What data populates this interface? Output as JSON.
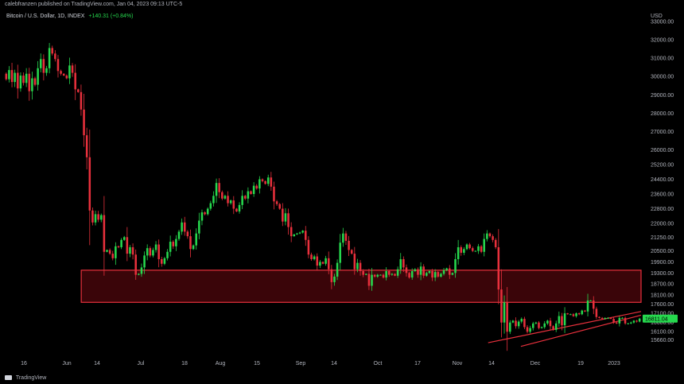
{
  "header": {
    "publisher_line": "calebfranzen published on TradingView.com, Jan 04, 2023 09:13 UTC-5",
    "symbol": "Bitcoin / U.S. Dollar, 1D, INDEX",
    "change": "+140.31 (+0.84%)"
  },
  "footer": {
    "brand": "TradingView"
  },
  "colors": {
    "background": "#000000",
    "up": "#26d94e",
    "down": "#e8303c",
    "zone_fill": "#3a0509",
    "zone_stroke": "#e8303c",
    "price_tag": "#26d94e"
  },
  "chart_data": {
    "type": "candlestick",
    "currency": "USD",
    "last_price": 16811.04,
    "last_price_label": "16811.04",
    "ylim": [
      15200,
      33300
    ],
    "y_ticks": [
      15660,
      16100,
      16600,
      17100,
      17600,
      18100,
      18700,
      19300,
      19900,
      20500,
      21250,
      22000,
      22800,
      23600,
      24400,
      25200,
      26000,
      27000,
      28000,
      29000,
      30000,
      31000,
      32000,
      33000
    ],
    "y_tick_labels": [
      "15660.00",
      "16100.00",
      "16600.00",
      "17100.00",
      "17600.00",
      "18100.00",
      "18700.00",
      "19300.00",
      "19900.00",
      "20500.00",
      "21250.00",
      "22000.00",
      "22800.00",
      "23600.00",
      "24400.00",
      "25200.00",
      "26000.00",
      "27000.00",
      "28000.00",
      "29000.00",
      "30000.00",
      "31000.00",
      "32000.00",
      "33000.00"
    ],
    "x_ticks": [
      "16",
      "Jun",
      "14",
      "Jul",
      "18",
      "Aug",
      "15",
      "Sep",
      "14",
      "Oct",
      "17",
      "Nov",
      "14",
      "Dec",
      "19",
      "2023"
    ],
    "date_range": [
      "2022-05-16",
      "2023-01-04"
    ],
    "resistance_zone": {
      "from": 17700,
      "to": 19450,
      "start": "2022-06-13",
      "end": "2023-01-04"
    },
    "trendlines": [
      {
        "from": [
          "2022-11-09",
          15500
        ],
        "to": [
          "2023-01-04",
          17200
        ]
      },
      {
        "from": [
          "2022-11-21",
          15300
        ],
        "to": [
          "2023-01-04",
          17000
        ]
      }
    ],
    "closes": [
      29850,
      30350,
      29700,
      30200,
      29350,
      30050,
      29650,
      30150,
      29200,
      29900,
      29550,
      30450,
      30950,
      30200,
      30450,
      31550,
      31250,
      30950,
      30300,
      30150,
      30050,
      29900,
      30600,
      30200,
      29300,
      29150,
      28200,
      26800,
      25600,
      22700,
      22050,
      22500,
      22200,
      22450,
      20450,
      20550,
      20350,
      20100,
      20750,
      20700,
      21100,
      21250,
      20350,
      20700,
      20300,
      19200,
      19250,
      19600,
      20250,
      20650,
      20250,
      20550,
      20850,
      20050,
      19800,
      20100,
      20450,
      21000,
      20750,
      21150,
      21550,
      22050,
      21550,
      21300,
      20600,
      20800,
      21450,
      22150,
      22600,
      22500,
      22800,
      23100,
      23500,
      24200,
      23700,
      23350,
      23500,
      23100,
      23250,
      22800,
      22650,
      23000,
      23500,
      23350,
      23750,
      23600,
      24050,
      23900,
      24400,
      24300,
      24150,
      24500,
      24000,
      23200,
      23050,
      22800,
      22100,
      22550,
      21800,
      21300,
      21400,
      21450,
      21500,
      21600,
      21100,
      20300,
      20050,
      20200,
      19700,
      19900,
      19800,
      20100,
      19500,
      18800,
      19100,
      19850,
      20950,
      21450,
      21050,
      20550,
      20350,
      19500,
      19850,
      19400,
      19200,
      19250,
      18600,
      19200,
      19100,
      19200,
      19200,
      19050,
      19400,
      19200,
      19250,
      19150,
      19500,
      20050,
      19600,
      19300,
      19050,
      19400,
      19500,
      19200,
      19650,
      19150,
      19300,
      19400,
      19050,
      19350,
      19100,
      19250,
      19450,
      19550,
      19200,
      19300,
      20050,
      20700,
      20400,
      20600,
      20850,
      20650,
      20500,
      20500,
      20750,
      20450,
      21150,
      21450,
      21300,
      21100,
      20700,
      18400,
      16600,
      17700,
      16100,
      16600,
      16700,
      16400,
      16650,
      16800,
      16350,
      16100,
      16300,
      16550,
      16600,
      16300,
      16350,
      16550,
      16700,
      16400,
      16200,
      16550,
      16950,
      16450,
      17100,
      17050,
      17050,
      16950,
      17100,
      17050,
      17250,
      17200,
      17800,
      17800,
      17350,
      16900,
      16850,
      16800,
      16850,
      16850,
      16800,
      16600,
      16550,
      16850,
      16850,
      16550,
      16550,
      16600,
      16700,
      16650,
      16811
    ]
  }
}
